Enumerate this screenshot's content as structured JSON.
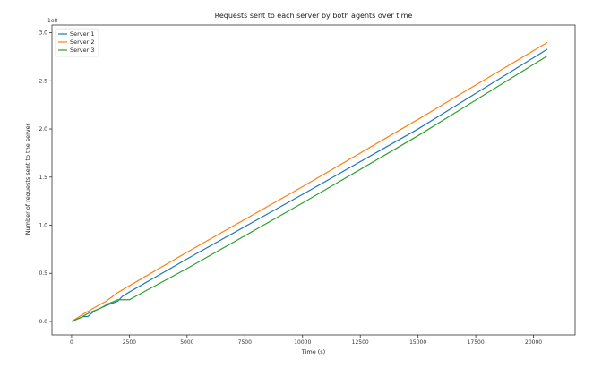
{
  "chart_data": {
    "type": "line",
    "title": "Requests sent to each server by both agents over time",
    "xlabel": "Time (s)",
    "ylabel": "Number of requests sent to the server",
    "y_offset_label": "1e8",
    "xlim": [
      -850,
      21800
    ],
    "ylim": [
      -0.14,
      3.08
    ],
    "xticks": [
      0,
      2500,
      5000,
      7500,
      10000,
      12500,
      15000,
      17500,
      20000
    ],
    "xtick_labels": [
      "0",
      "2500",
      "5000",
      "7500",
      "10000",
      "12500",
      "15000",
      "17500",
      "20000"
    ],
    "yticks": [
      0.0,
      0.5,
      1.0,
      1.5,
      2.0,
      2.5,
      3.0
    ],
    "ytick_labels": [
      "0.0",
      "0.5",
      "1.0",
      "1.5",
      "2.0",
      "2.5",
      "3.0"
    ],
    "grid": false,
    "legend_position": "top-left",
    "series": [
      {
        "name": "Server 1",
        "color": "#1f77b4",
        "x": [
          0,
          500,
          700,
          1000,
          1500,
          2000,
          2200,
          2500,
          5000,
          10000,
          15000,
          20600
        ],
        "values": [
          0.0,
          0.05,
          0.05,
          0.11,
          0.165,
          0.21,
          0.26,
          0.305,
          0.65,
          1.32,
          2.0,
          2.83
        ]
      },
      {
        "name": "Server 2",
        "color": "#ff7f0e",
        "x": [
          0,
          500,
          1000,
          1500,
          2000,
          2500,
          5000,
          10000,
          15000,
          20600
        ],
        "values": [
          0.0,
          0.075,
          0.145,
          0.21,
          0.3,
          0.37,
          0.72,
          1.4,
          2.1,
          2.9
        ]
      },
      {
        "name": "Server 3",
        "color": "#2ca02c",
        "x": [
          0,
          400,
          800,
          1200,
          1600,
          2000,
          2500,
          5000,
          10000,
          15000,
          20600
        ],
        "values": [
          0.0,
          0.04,
          0.095,
          0.13,
          0.185,
          0.225,
          0.225,
          0.55,
          1.23,
          1.93,
          2.76
        ]
      }
    ]
  }
}
